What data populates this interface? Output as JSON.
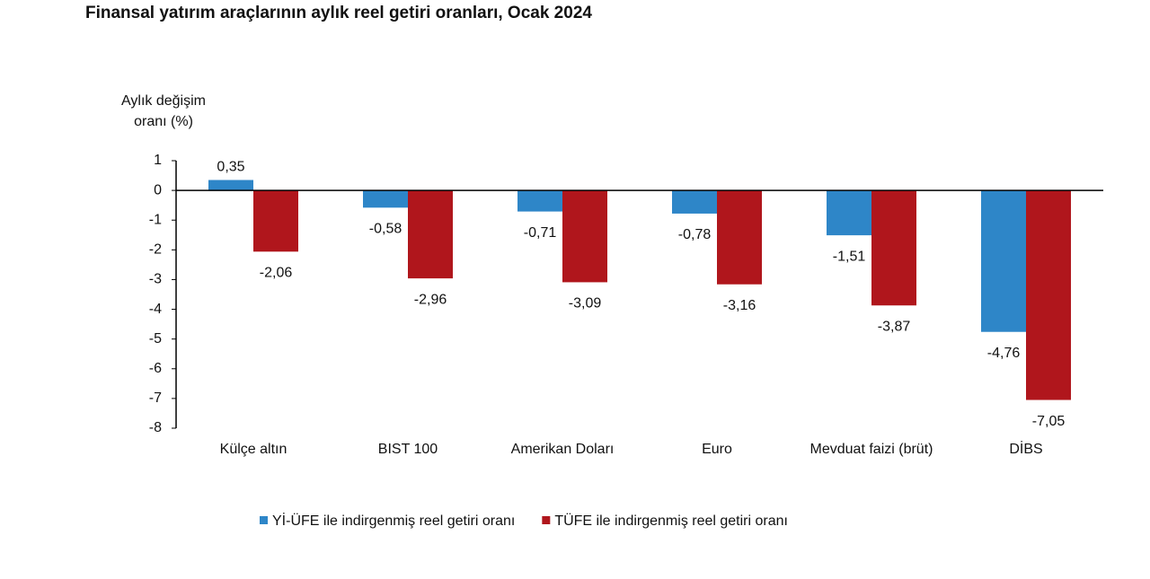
{
  "chart_data": {
    "type": "bar",
    "title": "Finansal yatırım araçlarının aylık reel getiri oranları, Ocak 2024",
    "ylabel": [
      "Aylık değişim",
      "oranı (%)"
    ],
    "categories": [
      "Külçe altın",
      "BIST 100",
      "Amerikan Doları",
      "Euro",
      "Mevduat faizi (brüt)",
      "DİBS"
    ],
    "series": [
      {
        "name": "Yİ-ÜFE ile indirgenmiş reel getiri oranı",
        "color": "#2e86c8",
        "values": [
          0.35,
          -0.58,
          -0.71,
          -0.78,
          -1.51,
          -4.76
        ],
        "value_labels": [
          "0,35",
          "-0,58",
          "-0,71",
          "-0,78",
          "-1,51",
          "-4,76"
        ]
      },
      {
        "name": "TÜFE ile indirgenmiş reel getiri oranı",
        "color": "#b0161c",
        "values": [
          -2.06,
          -2.96,
          -3.09,
          -3.16,
          -3.87,
          -7.05
        ],
        "value_labels": [
          "-2,06",
          "-2,96",
          "-3,09",
          "-3,16",
          "-3,87",
          "-7,05"
        ]
      }
    ],
    "ylim": [
      -8,
      1
    ],
    "yticks": [
      1,
      0,
      -1,
      -2,
      -3,
      -4,
      -5,
      -6,
      -7,
      -8
    ],
    "legend": "bottom"
  }
}
